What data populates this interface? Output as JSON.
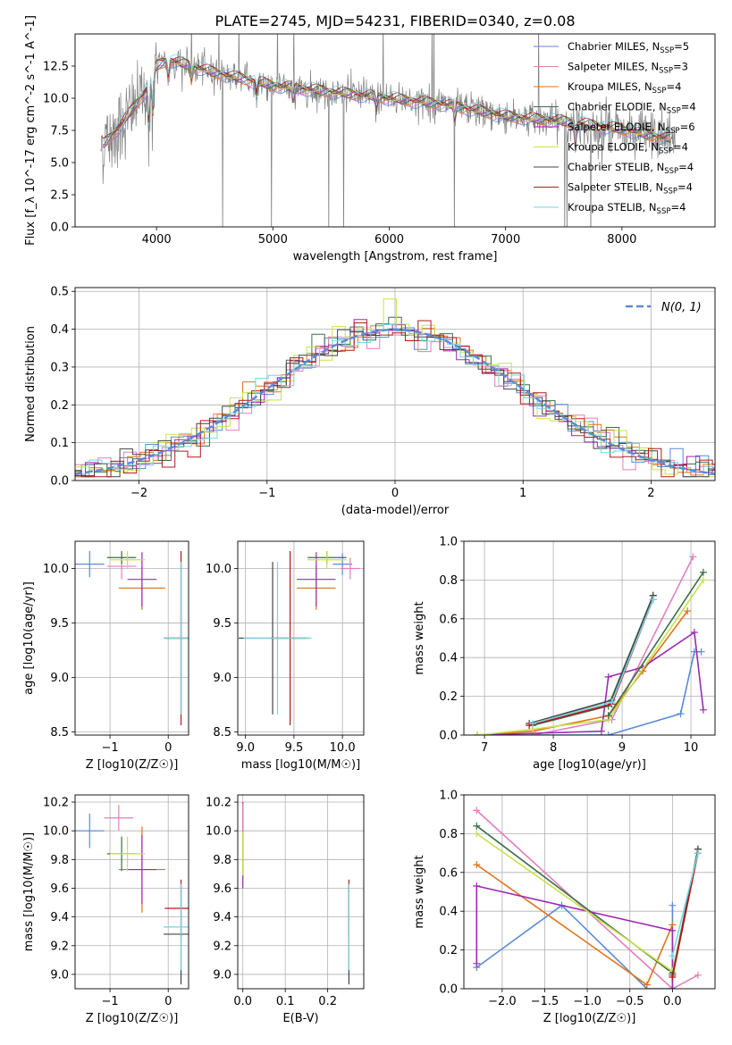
{
  "figure": {
    "title": "PLATE=2745, MJD=54231, FIBERID=0340, z=0.08"
  },
  "colors": {
    "Chabrier MILES": "#5b8ad6",
    "Salpeter MILES": "#e07fbf",
    "Kroupa MILES": "#e0741a",
    "Chabrier ELODIE": "#3d6e48",
    "Salpeter ELODIE": "#9b2ab0",
    "Kroupa ELODIE": "#c6e34a",
    "Chabrier STELIB": "#444444",
    "Salpeter STELIB": "#b3191d",
    "Kroupa STELIB": "#7ad3dd",
    "data": "#808080",
    "normal": "#5b8ad6"
  },
  "chart_data": [
    {
      "id": "spectrum",
      "type": "line",
      "xlabel": "wavelength [Angstrom, rest frame]",
      "ylabel": "Flux [f_λ 10^-17 erg cm^-2 s^-1 A^-1]",
      "xlim": [
        3300,
        8800
      ],
      "ylim": [
        0,
        15
      ],
      "xticks": [
        "4000",
        "5000",
        "6000",
        "7000",
        "8000"
      ],
      "yticks": [
        "0.0",
        "2.5",
        "5.0",
        "7.5",
        "10.0",
        "12.5"
      ],
      "legend_position": "upper-right",
      "legend": [
        {
          "model": "Chabrier MILES",
          "n": "5"
        },
        {
          "model": "Salpeter MILES",
          "n": "3"
        },
        {
          "model": "Kroupa MILES",
          "n": "4"
        },
        {
          "model": "Chabrier ELODIE",
          "n": "4"
        },
        {
          "model": "Salpeter ELODIE",
          "n": "6"
        },
        {
          "model": "Kroupa ELODIE",
          "n": "4"
        },
        {
          "model": "Chabrier STELIB",
          "n": "4"
        },
        {
          "model": "Salpeter STELIB",
          "n": "4"
        },
        {
          "model": "Kroupa STELIB",
          "n": "4"
        }
      ],
      "continuum": {
        "x": [
          3550,
          3700,
          3900,
          4000,
          4100,
          4300,
          4500,
          5000,
          5500,
          6000,
          6500,
          7000,
          7500,
          8000,
          8300,
          8450
        ],
        "y": [
          6.5,
          8.0,
          10.5,
          12.5,
          13.0,
          12.5,
          12.0,
          11.0,
          10.5,
          10.0,
          9.5,
          8.6,
          8.2,
          7.6,
          7.0,
          6.8
        ]
      }
    },
    {
      "id": "residuals",
      "type": "histogram",
      "xlabel": "(data-model)/error",
      "ylabel": "Normed distribution",
      "xlim": [
        -2.5,
        2.5
      ],
      "ylim": [
        0,
        0.51
      ],
      "xticks": [
        "−2",
        "−1",
        "0",
        "1",
        "2"
      ],
      "yticks": [
        "0.0",
        "0.1",
        "0.2",
        "0.3",
        "0.4",
        "0.5"
      ],
      "legend_position": "upper-right",
      "normal_label": "N(0, 1)",
      "bin_width": 0.1,
      "histogram_spike": {
        "x": 0.0,
        "y": 0.48
      }
    },
    {
      "id": "age-Z",
      "type": "scatter",
      "xlabel": "Z [log10(Z/Z☉)]",
      "ylabel": "age  [log10(age/yr)]",
      "xlim": [
        -1.6,
        0.35
      ],
      "ylim": [
        8.47,
        10.25
      ],
      "xticks": [
        "−1",
        "0"
      ],
      "yticks": [
        "8.5",
        "9.0",
        "9.5",
        "10.0"
      ],
      "points": [
        {
          "model": "Chabrier MILES",
          "x": -1.35,
          "y": 10.04,
          "ex": 0.25,
          "ey": 0.12
        },
        {
          "model": "Salpeter MILES",
          "x": -0.8,
          "y": 10.02,
          "ex": 0.25,
          "ey": 0.12
        },
        {
          "model": "Kroupa MILES",
          "x": -0.45,
          "y": 9.82,
          "ex": 0.4,
          "ey": 0.2
        },
        {
          "model": "Chabrier ELODIE",
          "x": -0.8,
          "y": 10.1,
          "ex": 0.25,
          "ey": 0.06
        },
        {
          "model": "Salpeter ELODIE",
          "x": -0.45,
          "y": 9.9,
          "ex": 0.25,
          "ey": 0.25
        },
        {
          "model": "Kroupa ELODIE",
          "x": -0.7,
          "y": 10.08,
          "ex": 0.3,
          "ey": 0.08
        },
        {
          "model": "Chabrier STELIB",
          "x": 0.22,
          "y": 9.36,
          "ex": 0.3,
          "ey": 0.7
        },
        {
          "model": "Salpeter STELIB",
          "x": 0.22,
          "y": 9.36,
          "ex": 0.28,
          "ey": 0.8
        },
        {
          "model": "Kroupa STELIB",
          "x": 0.22,
          "y": 9.36,
          "ex": 0.3,
          "ey": 0.7
        }
      ]
    },
    {
      "id": "age-mass",
      "type": "scatter",
      "xlabel": "mass [log10(M/M☉)]",
      "ylabel": "",
      "xlim": [
        8.92,
        10.22
      ],
      "ylim": [
        8.47,
        10.25
      ],
      "xticks": [
        "9.0",
        "9.5",
        "10.0"
      ],
      "yticks": [
        "8.5",
        "9.0",
        "9.5",
        "10.0"
      ],
      "points": [
        {
          "model": "Chabrier MILES",
          "x": 10.0,
          "y": 10.04,
          "ex": 0.1,
          "ey": 0.1
        },
        {
          "model": "Salpeter MILES",
          "x": 10.08,
          "y": 10.0,
          "ex": 0.1,
          "ey": 0.1
        },
        {
          "model": "Kroupa MILES",
          "x": 9.73,
          "y": 9.82,
          "ex": 0.2,
          "ey": 0.2
        },
        {
          "model": "Chabrier ELODIE",
          "x": 9.84,
          "y": 10.1,
          "ex": 0.2,
          "ey": 0.06
        },
        {
          "model": "Salpeter ELODIE",
          "x": 9.73,
          "y": 9.9,
          "ex": 0.2,
          "ey": 0.25
        },
        {
          "model": "Kroupa ELODIE",
          "x": 9.84,
          "y": 10.08,
          "ex": 0.2,
          "ey": 0.08
        },
        {
          "model": "Chabrier STELIB",
          "x": 9.28,
          "y": 9.36,
          "ex": 0.35,
          "ey": 0.7
        },
        {
          "model": "Salpeter STELIB",
          "x": 9.46,
          "y": 9.36,
          "ex": 0.2,
          "ey": 0.8
        },
        {
          "model": "Kroupa STELIB",
          "x": 9.33,
          "y": 9.36,
          "ex": 0.35,
          "ey": 0.7
        }
      ]
    },
    {
      "id": "mw-age",
      "type": "line",
      "xlabel": "age  [log10(age/yr)]",
      "ylabel": "mass weight",
      "xlim": [
        6.7,
        10.35
      ],
      "ylim": [
        0,
        1.0
      ],
      "xticks": [
        "7",
        "8",
        "9",
        "10"
      ],
      "yticks": [
        "0.0",
        "0.2",
        "0.4",
        "0.6",
        "0.8",
        "1.0"
      ],
      "series": [
        {
          "model": "Chabrier MILES",
          "x": [
            6.9,
            7.7,
            8.8,
            9.85,
            10.05,
            10.15
          ],
          "y": [
            0.0,
            0.0,
            0.0,
            0.11,
            0.43,
            0.43
          ]
        },
        {
          "model": "Salpeter MILES",
          "x": [
            6.9,
            7.7,
            8.85,
            10.03
          ],
          "y": [
            0.0,
            0.0,
            0.08,
            0.92
          ]
        },
        {
          "model": "Kroupa MILES",
          "x": [
            6.9,
            7.7,
            8.8,
            9.3,
            9.95
          ],
          "y": [
            0.0,
            0.02,
            0.1,
            0.33,
            0.64
          ]
        },
        {
          "model": "Chabrier ELODIE",
          "x": [
            7.7,
            8.8,
            9.45
          ],
          "y": [
            0.05,
            0.15,
            0.72
          ]
        },
        {
          "model": "Salpeter ELODIE",
          "x": [
            6.9,
            8.7,
            8.8,
            9.3,
            10.05,
            10.18
          ],
          "y": [
            0.0,
            0.02,
            0.3,
            0.35,
            0.53,
            0.13
          ]
        },
        {
          "model": "Kroupa ELODIE",
          "x": [
            6.9,
            7.7,
            8.8,
            10.18
          ],
          "y": [
            0.0,
            0.03,
            0.08,
            0.8
          ]
        },
        {
          "model": "Chabrier STELIB",
          "x": [
            7.65,
            8.85,
            9.45
          ],
          "y": [
            0.06,
            0.18,
            0.72
          ]
        },
        {
          "model": "Salpeter STELIB",
          "x": [
            7.65,
            8.85,
            9.45
          ],
          "y": [
            0.05,
            0.16,
            0.7
          ]
        },
        {
          "model": "Kroupa STELIB",
          "x": [
            7.7,
            8.85,
            9.45
          ],
          "y": [
            0.06,
            0.17,
            0.7
          ]
        },
        {
          "model": "Chabrier ELODIE",
          "x": [
            8.8,
            10.18
          ],
          "y": [
            0.1,
            0.84
          ]
        }
      ]
    },
    {
      "id": "mass-Z",
      "type": "scatter",
      "xlabel": "Z [log10(Z/Z☉)]",
      "ylabel": "mass [log10(M/M☉)]",
      "xlim": [
        -1.6,
        0.35
      ],
      "ylim": [
        8.9,
        10.25
      ],
      "xticks": [
        "−1",
        "0"
      ],
      "yticks": [
        "9.0",
        "9.2",
        "9.4",
        "9.6",
        "9.8",
        "10.0",
        "10.2"
      ],
      "points": [
        {
          "model": "Chabrier MILES",
          "x": -1.35,
          "y": 10.0,
          "ex": 0.25,
          "ey": 0.12
        },
        {
          "model": "Salpeter MILES",
          "x": -0.85,
          "y": 10.09,
          "ex": 0.25,
          "ey": 0.09
        },
        {
          "model": "Kroupa MILES",
          "x": -0.45,
          "y": 9.73,
          "ex": 0.4,
          "ey": 0.3
        },
        {
          "model": "Chabrier ELODIE",
          "x": -0.8,
          "y": 9.84,
          "ex": 0.25,
          "ey": 0.12
        },
        {
          "model": "Salpeter ELODIE",
          "x": -0.45,
          "y": 9.73,
          "ex": 0.25,
          "ey": 0.24
        },
        {
          "model": "Kroupa ELODIE",
          "x": -0.7,
          "y": 9.84,
          "ex": 0.3,
          "ey": 0.12
        },
        {
          "model": "Chabrier STELIB",
          "x": 0.22,
          "y": 9.28,
          "ex": 0.3,
          "ey": 0.35
        },
        {
          "model": "Salpeter STELIB",
          "x": 0.22,
          "y": 9.46,
          "ex": 0.28,
          "ey": 0.2
        },
        {
          "model": "Kroupa STELIB",
          "x": 0.22,
          "y": 9.33,
          "ex": 0.3,
          "ey": 0.3
        }
      ]
    },
    {
      "id": "mass-ebv",
      "type": "scatter",
      "xlabel": "E(B-V)",
      "ylabel": "",
      "xlim": [
        -0.012,
        0.285
      ],
      "ylim": [
        8.9,
        10.25
      ],
      "xticks": [
        "0.0",
        "0.1",
        "0.2"
      ],
      "yticks": [
        "9.0",
        "9.2",
        "9.4",
        "9.6",
        "9.8",
        "10.0",
        "10.2"
      ],
      "points": [
        {
          "model": "Salpeter ELODIE",
          "x": 0.0,
          "y": 9.9,
          "ex": 0.0,
          "ey": 0.3
        },
        {
          "model": "Kroupa ELODIE",
          "x": 0.0,
          "y": 9.84,
          "ex": 0.0,
          "ey": 0.15
        },
        {
          "model": "Salpeter MILES",
          "x": 0.0,
          "y": 10.09,
          "ex": 0.0,
          "ey": 0.1
        },
        {
          "model": "Chabrier STELIB",
          "x": 0.25,
          "y": 9.28,
          "ex": 0.0,
          "ey": 0.35
        },
        {
          "model": "Salpeter STELIB",
          "x": 0.25,
          "y": 9.46,
          "ex": 0.0,
          "ey": 0.2
        },
        {
          "model": "Kroupa STELIB",
          "x": 0.25,
          "y": 9.33,
          "ex": 0.0,
          "ey": 0.3
        }
      ]
    },
    {
      "id": "mw-Z",
      "type": "line",
      "xlabel": "Z [log10(Z/Z☉)]",
      "ylabel": "mass weight",
      "xlim": [
        -2.45,
        0.5
      ],
      "ylim": [
        0,
        1.0
      ],
      "xticks": [
        "−2.0",
        "−1.5",
        "−1.0",
        "−0.5",
        "0.0"
      ],
      "yticks": [
        "0.0",
        "0.2",
        "0.4",
        "0.6",
        "0.8",
        "1.0"
      ],
      "series": [
        {
          "model": "Chabrier MILES",
          "x": [
            -2.3,
            -1.3,
            -0.3,
            0.0,
            0.0
          ],
          "y": [
            0.11,
            0.43,
            0.0,
            0.0,
            0.43
          ]
        },
        {
          "model": "Salpeter MILES",
          "x": [
            -2.3,
            0.0,
            0.3
          ],
          "y": [
            0.92,
            0.0,
            0.07
          ]
        },
        {
          "model": "Kroupa MILES",
          "x": [
            -2.3,
            -0.3,
            0.0
          ],
          "y": [
            0.64,
            0.02,
            0.33
          ]
        },
        {
          "model": "Chabrier ELODIE",
          "x": [
            -2.3,
            0.0,
            0.3
          ],
          "y": [
            0.84,
            0.08,
            0.72
          ]
        },
        {
          "model": "Salpeter ELODIE",
          "x": [
            -2.3,
            -2.3,
            0.0,
            0.0
          ],
          "y": [
            0.13,
            0.53,
            0.3,
            0.0
          ]
        },
        {
          "model": "Kroupa ELODIE",
          "x": [
            -2.3,
            0.0,
            0.3
          ],
          "y": [
            0.8,
            0.09,
            0.7
          ]
        },
        {
          "model": "Chabrier STELIB",
          "x": [
            0.0,
            0.3
          ],
          "y": [
            0.07,
            0.72
          ]
        },
        {
          "model": "Salpeter STELIB",
          "x": [
            0.0,
            0.3
          ],
          "y": [
            0.06,
            0.7
          ]
        },
        {
          "model": "Kroupa STELIB",
          "x": [
            0.0,
            0.3
          ],
          "y": [
            0.17,
            0.7
          ]
        }
      ]
    }
  ]
}
